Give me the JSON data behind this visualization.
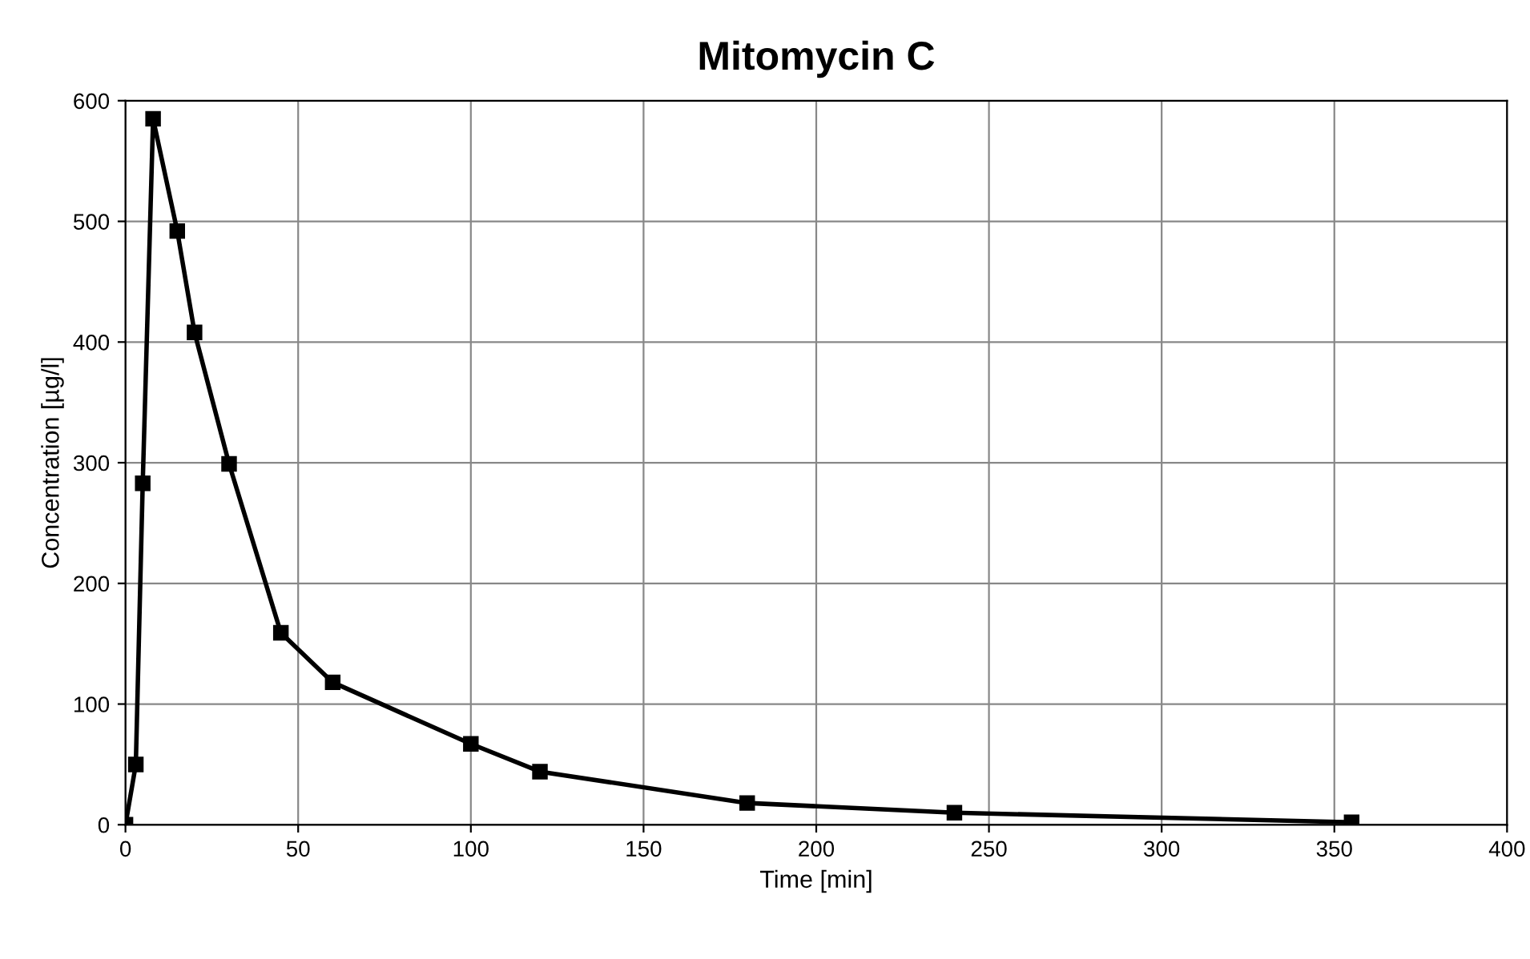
{
  "chart_data": {
    "type": "line",
    "title": "Mitomycin C",
    "xlabel": "Time [min]",
    "ylabel": "Concentration [µg/l]",
    "x": [
      0,
      3,
      5,
      8,
      15,
      20,
      30,
      45,
      60,
      100,
      120,
      180,
      240,
      355
    ],
    "series": [
      {
        "color": "#000000",
        "values": [
          0,
          50,
          283,
          585,
          492,
          408,
          299,
          159,
          118,
          67,
          44,
          18,
          10,
          2
        ]
      }
    ],
    "xlim": [
      0,
      400
    ],
    "xticks": [
      0,
      50,
      100,
      150,
      200,
      250,
      300,
      350,
      400
    ],
    "ylim": [
      0,
      600
    ],
    "yticks": [
      0,
      100,
      200,
      300,
      400,
      500,
      600
    ],
    "grid": true,
    "marker": "square",
    "line_style": "solid"
  }
}
